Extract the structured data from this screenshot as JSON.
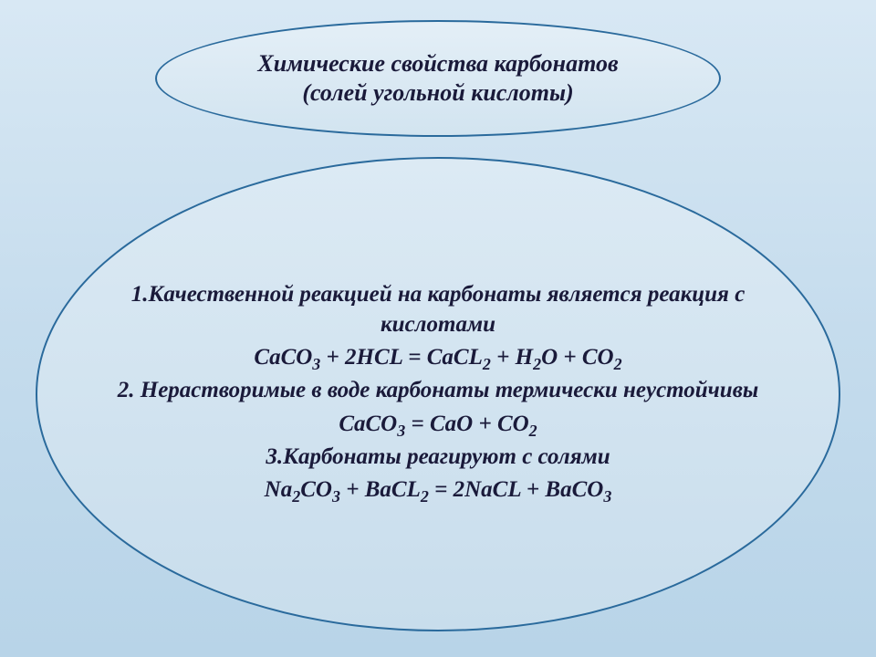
{
  "title": {
    "line1": "Химические свойства карбонатов",
    "line2": "(солей угольной кислоты)"
  },
  "content": {
    "item1_text": "1.Качественной реакцией на карбонаты является реакция с кислотами",
    "item1_eq_html": "CaCO<sub>3</sub> + 2HCL = CaCL<sub>2</sub> + H<sub>2</sub>O + CO<sub>2</sub>",
    "item2_text": "2. Нерастворимые в воде карбонаты термически неустойчивы",
    "item2_eq_html": "CaCO<sub>3</sub> = CaO + CO<sub>2</sub>",
    "item3_text": "3.Карбонаты реагируют с солями",
    "item3_eq_html": "Na<sub>2</sub>CO<sub>3</sub> + BaCL<sub>2</sub> = 2NaCL + BaCO<sub>3</sub>"
  },
  "style": {
    "title_fontsize": 26,
    "content_fontsize": 25,
    "text_color": "#1a1a3a",
    "border_color": "#2a6a9c",
    "bg_gradient_top": "#d8e8f4",
    "bg_gradient_bottom": "#b8d4e8",
    "title_ellipse_w": 620,
    "title_ellipse_h": 128,
    "content_ellipse_w": 882,
    "content_ellipse_h": 520,
    "font_family": "Georgia",
    "font_style": "italic",
    "font_weight": "bold"
  }
}
